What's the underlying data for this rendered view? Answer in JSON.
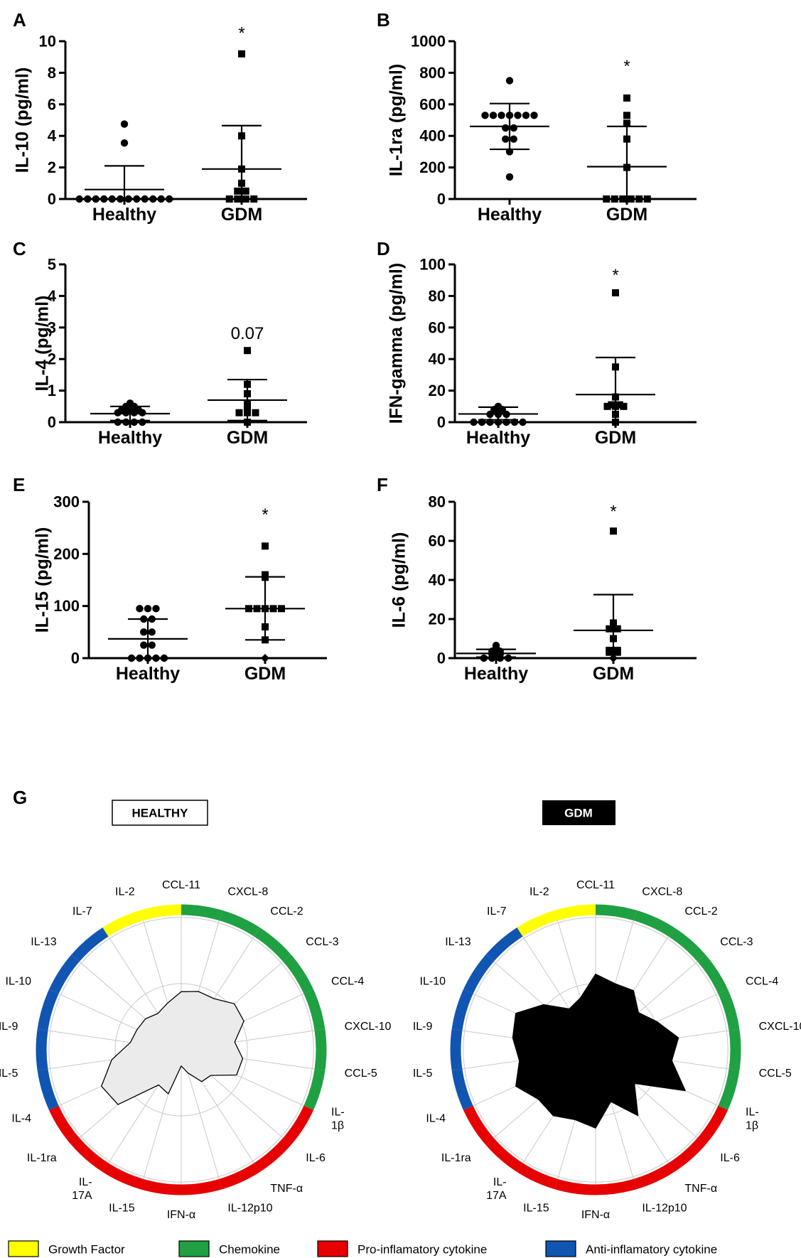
{
  "chart_data": [
    {
      "panel": "A",
      "type": "scatter",
      "ylabel": "IL-10 (pg/ml)",
      "ylim": [
        0,
        10
      ],
      "yticks": [
        "0",
        "2",
        "4",
        "6",
        "8",
        "10"
      ],
      "categories": [
        "Healthy",
        "GDM"
      ],
      "series": [
        {
          "name": "Healthy",
          "marker": "circle",
          "values": [
            0,
            0,
            0,
            0,
            0,
            0,
            0,
            0,
            0,
            0,
            0,
            0,
            3.55,
            4.75
          ],
          "mean": 0.6,
          "sd_low": 0,
          "sd_high": 2.1
        },
        {
          "name": "GDM",
          "marker": "square",
          "values": [
            0,
            0,
            0,
            0,
            0.5,
            0.5,
            1.0,
            1.9,
            4.0,
            9.2
          ],
          "mean": 1.9,
          "sd_low": 0,
          "sd_high": 4.65
        }
      ],
      "annotation": {
        "category": "GDM",
        "text": "*",
        "y": 10.5
      }
    },
    {
      "panel": "B",
      "type": "scatter",
      "ylabel": "IL-1ra (pg/ml)",
      "ylim": [
        0,
        1000
      ],
      "yticks": [
        "0",
        "200",
        "400",
        "600",
        "800",
        "1000"
      ],
      "categories": [
        "Healthy",
        "GDM"
      ],
      "series": [
        {
          "name": "Healthy",
          "marker": "circle",
          "values": [
            140,
            300,
            380,
            380,
            450,
            450,
            530,
            530,
            530,
            530,
            530,
            530,
            530,
            750
          ],
          "mean": 460,
          "sd_low": 315,
          "sd_high": 605
        },
        {
          "name": "GDM",
          "marker": "square",
          "values": [
            0,
            0,
            0,
            0,
            0,
            0,
            200,
            380,
            480,
            530,
            640
          ],
          "mean": 205,
          "sd_low": 0,
          "sd_high": 460
        }
      ],
      "annotation": {
        "category": "GDM",
        "text": "*",
        "y": 840
      }
    },
    {
      "panel": "C",
      "type": "scatter",
      "ylabel": "IL-4 (pg/ml)",
      "ylim": [
        0,
        5
      ],
      "yticks": [
        "0",
        "1",
        "2",
        "3",
        "4",
        "5"
      ],
      "categories": [
        "Healthy",
        "GDM"
      ],
      "series": [
        {
          "name": "Healthy",
          "marker": "circle",
          "values": [
            0,
            0,
            0,
            0,
            0.3,
            0.3,
            0.3,
            0.3,
            0.4,
            0.4,
            0.4,
            0.5,
            0.5,
            0.6
          ],
          "mean": 0.27,
          "sd_low": 0.05,
          "sd_high": 0.5
        },
        {
          "name": "GDM",
          "marker": "square",
          "values": [
            0,
            0.3,
            0.3,
            0.3,
            0.5,
            0.6,
            0.9,
            1.2,
            2.27
          ],
          "mean": 0.7,
          "sd_low": 0.05,
          "sd_high": 1.35
        },
        {
          "name": "GDM-min",
          "marker": "diamond",
          "values": [
            0
          ]
        }
      ],
      "annotation": {
        "category": "GDM",
        "text": "0.07",
        "y": 2.8
      }
    },
    {
      "panel": "D",
      "type": "scatter",
      "ylabel": "IFN-gamma (pg/ml)",
      "ylim": [
        0,
        100
      ],
      "yticks": [
        "0",
        "20",
        "40",
        "60",
        "80",
        "100"
      ],
      "categories": [
        "Healthy",
        "GDM"
      ],
      "series": [
        {
          "name": "Healthy",
          "marker": "circle",
          "values": [
            0,
            0,
            0,
            0,
            0,
            0,
            0,
            5,
            5,
            5,
            7,
            7,
            8,
            8,
            9,
            10
          ],
          "mean": 5.2,
          "sd_low": 1.5,
          "sd_high": 9.5
        },
        {
          "name": "GDM",
          "marker": "square",
          "values": [
            0,
            5,
            10,
            10,
            10,
            11,
            11,
            16,
            35,
            82
          ],
          "mean": 17.5,
          "sd_low": 0,
          "sd_high": 41
        },
        {
          "name": "GDM-min",
          "marker": "diamond",
          "values": [
            0
          ]
        }
      ],
      "annotation": {
        "category": "GDM",
        "text": "*",
        "y": 93
      }
    },
    {
      "panel": "E",
      "type": "scatter",
      "ylabel": "IL-15 (pg/ml)",
      "ylim": [
        0,
        300
      ],
      "yticks": [
        "0",
        "100",
        "200",
        "300"
      ],
      "categories": [
        "Healthy",
        "GDM"
      ],
      "series": [
        {
          "name": "Healthy",
          "marker": "circle",
          "values": [
            0,
            0,
            0,
            0,
            0,
            25,
            25,
            50,
            50,
            75,
            75,
            95,
            95,
            95
          ],
          "mean": 37,
          "sd_low": 0,
          "sd_high": 75
        },
        {
          "name": "GDM",
          "marker": "square",
          "values": [
            35,
            60,
            95,
            95,
            95,
            95,
            95,
            155,
            160,
            215
          ],
          "mean": 95,
          "sd_low": 35,
          "sd_high": 156
        },
        {
          "name": "GDM-min",
          "marker": "diamond",
          "values": [
            0
          ]
        }
      ],
      "annotation": {
        "category": "GDM",
        "text": "*",
        "y": 275
      }
    },
    {
      "panel": "F",
      "type": "scatter",
      "ylabel": "IL-6 (pg/ml)",
      "ylim": [
        0,
        80
      ],
      "yticks": [
        "0",
        "20",
        "40",
        "60",
        "80"
      ],
      "categories": [
        "Healthy",
        "GDM"
      ],
      "series": [
        {
          "name": "Healthy",
          "marker": "circle",
          "values": [
            0,
            0,
            0,
            0,
            1.5,
            2,
            2,
            2.5,
            3,
            3.5,
            3.5,
            4,
            5,
            6.5
          ],
          "mean": 2.4,
          "sd_low": 0.5,
          "sd_high": 4.5
        },
        {
          "name": "GDM",
          "marker": "square",
          "values": [
            3,
            3,
            4,
            4,
            10,
            15,
            15,
            16,
            18,
            65
          ],
          "mean": 14.2,
          "sd_low": 0,
          "sd_high": 32.5
        },
        {
          "name": "GDM-min",
          "marker": "diamond",
          "values": [
            0
          ]
        }
      ],
      "annotation": {
        "category": "GDM",
        "text": "*",
        "y": 75
      }
    },
    {
      "panel": "G",
      "type": "radar",
      "axes": [
        "CCL-11",
        "CXCL-8",
        "CCL-2",
        "CCL-3",
        "CCL-4",
        "CXCL-10",
        "CCL-5",
        "IL-1β",
        "IL-6",
        "TNF-α",
        "IL-12p10",
        "IFN-α",
        "IL-15",
        "IL-17A",
        "IL-1ra",
        "IL-4",
        "IL-5",
        "IL-9",
        "IL-10",
        "IL-13",
        "IL-7",
        "IL-2"
      ],
      "axis_labels": [
        [
          "CCL-11"
        ],
        [
          "CXCL-8"
        ],
        [
          "CCL-2"
        ],
        [
          "CCL-3"
        ],
        [
          "CCL-4"
        ],
        [
          "CXCL-10"
        ],
        [
          "CCL-5"
        ],
        [
          "IL-",
          "1β"
        ],
        [
          "IL-6"
        ],
        [
          "TNF-α"
        ],
        [
          "IL-12p10"
        ],
        [
          "IFN-α"
        ],
        [
          "IL-15"
        ],
        [
          "IL-",
          "17A"
        ],
        [
          "IL-1ra"
        ],
        [
          "IL-4"
        ],
        [
          "IL-5"
        ],
        [
          "IL-9"
        ],
        [
          "IL-10"
        ],
        [
          "IL-13"
        ],
        [
          "IL-7"
        ],
        [
          "IL-2"
        ]
      ],
      "categories_by_axis": [
        "Chemokine",
        "Chemokine",
        "Chemokine",
        "Chemokine",
        "Chemokine",
        "Chemokine",
        "Chemokine",
        "Pro-inflamatory cytokine",
        "Pro-inflamatory cytokine",
        "Pro-inflamatory cytokine",
        "Pro-inflamatory cytokine",
        "Pro-inflamatory cytokine",
        "Pro-inflamatory cytokine",
        "Pro-inflamatory cytokine",
        "Pro-inflamatory cytokine",
        "Anti-inflamatory cytokine",
        "Anti-inflamatory cytokine",
        "Anti-inflamatory cytokine",
        "Anti-inflamatory cytokine",
        "Anti-inflamatory cytokine",
        "Growth Factor",
        "Growth Factor"
      ],
      "rmax": 100,
      "series": [
        {
          "name": "HEALTHY",
          "fill": "#ebebeb",
          "values": [
            43,
            45,
            45,
            52,
            51,
            40,
            46,
            45,
            29,
            28,
            18,
            12,
            34,
            31,
            62,
            65,
            52,
            38,
            36,
            35,
            32,
            36
          ]
        },
        {
          "name": "GDM",
          "fill": "#000000",
          "values": [
            56,
            51,
            52,
            42,
            50,
            62,
            57,
            73,
            38,
            58,
            40,
            58,
            54,
            58,
            56,
            65,
            57,
            62,
            65,
            51,
            36,
            40
          ]
        }
      ]
    }
  ],
  "panel_letters": [
    "A",
    "B",
    "C",
    "D",
    "E",
    "F",
    "G"
  ],
  "radar_titles": {
    "healthy": "HEALTHY",
    "gdm": "GDM"
  },
  "legend": [
    {
      "label": "Growth Factor",
      "color": "#ffff00"
    },
    {
      "label": "Chemokine",
      "color": "#1fa042"
    },
    {
      "label": "Pro-inflamatory cytokine",
      "color": "#e60000"
    },
    {
      "label": "Anti-inflamatory cytokine",
      "color": "#1155b3"
    }
  ]
}
